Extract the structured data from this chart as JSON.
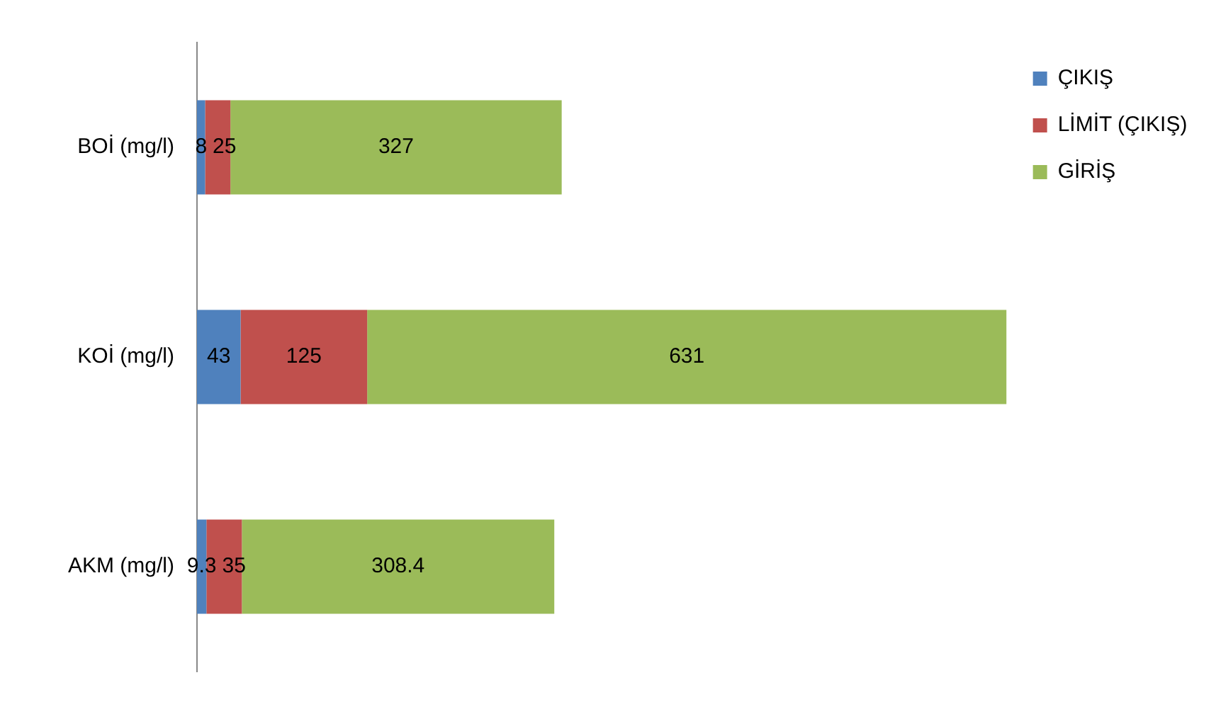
{
  "chart_data": {
    "type": "bar",
    "orientation": "horizontal",
    "stacked": true,
    "data_labels": true,
    "legend": "top right",
    "grid": false,
    "categories": [
      "BOİ (mg/l)",
      "KOİ (mg/l)",
      "AKM (mg/l)"
    ],
    "series": [
      {
        "name": "ÇIKIŞ",
        "color": "#4f81bd",
        "values": [
          8,
          43,
          9.3
        ]
      },
      {
        "name": "LİMİT (ÇIKIŞ)",
        "color": "#c0504d",
        "values": [
          25,
          125,
          35
        ]
      },
      {
        "name": "GİRİŞ",
        "color": "#9bbb59",
        "values": [
          327,
          631,
          308.4
        ]
      }
    ]
  }
}
